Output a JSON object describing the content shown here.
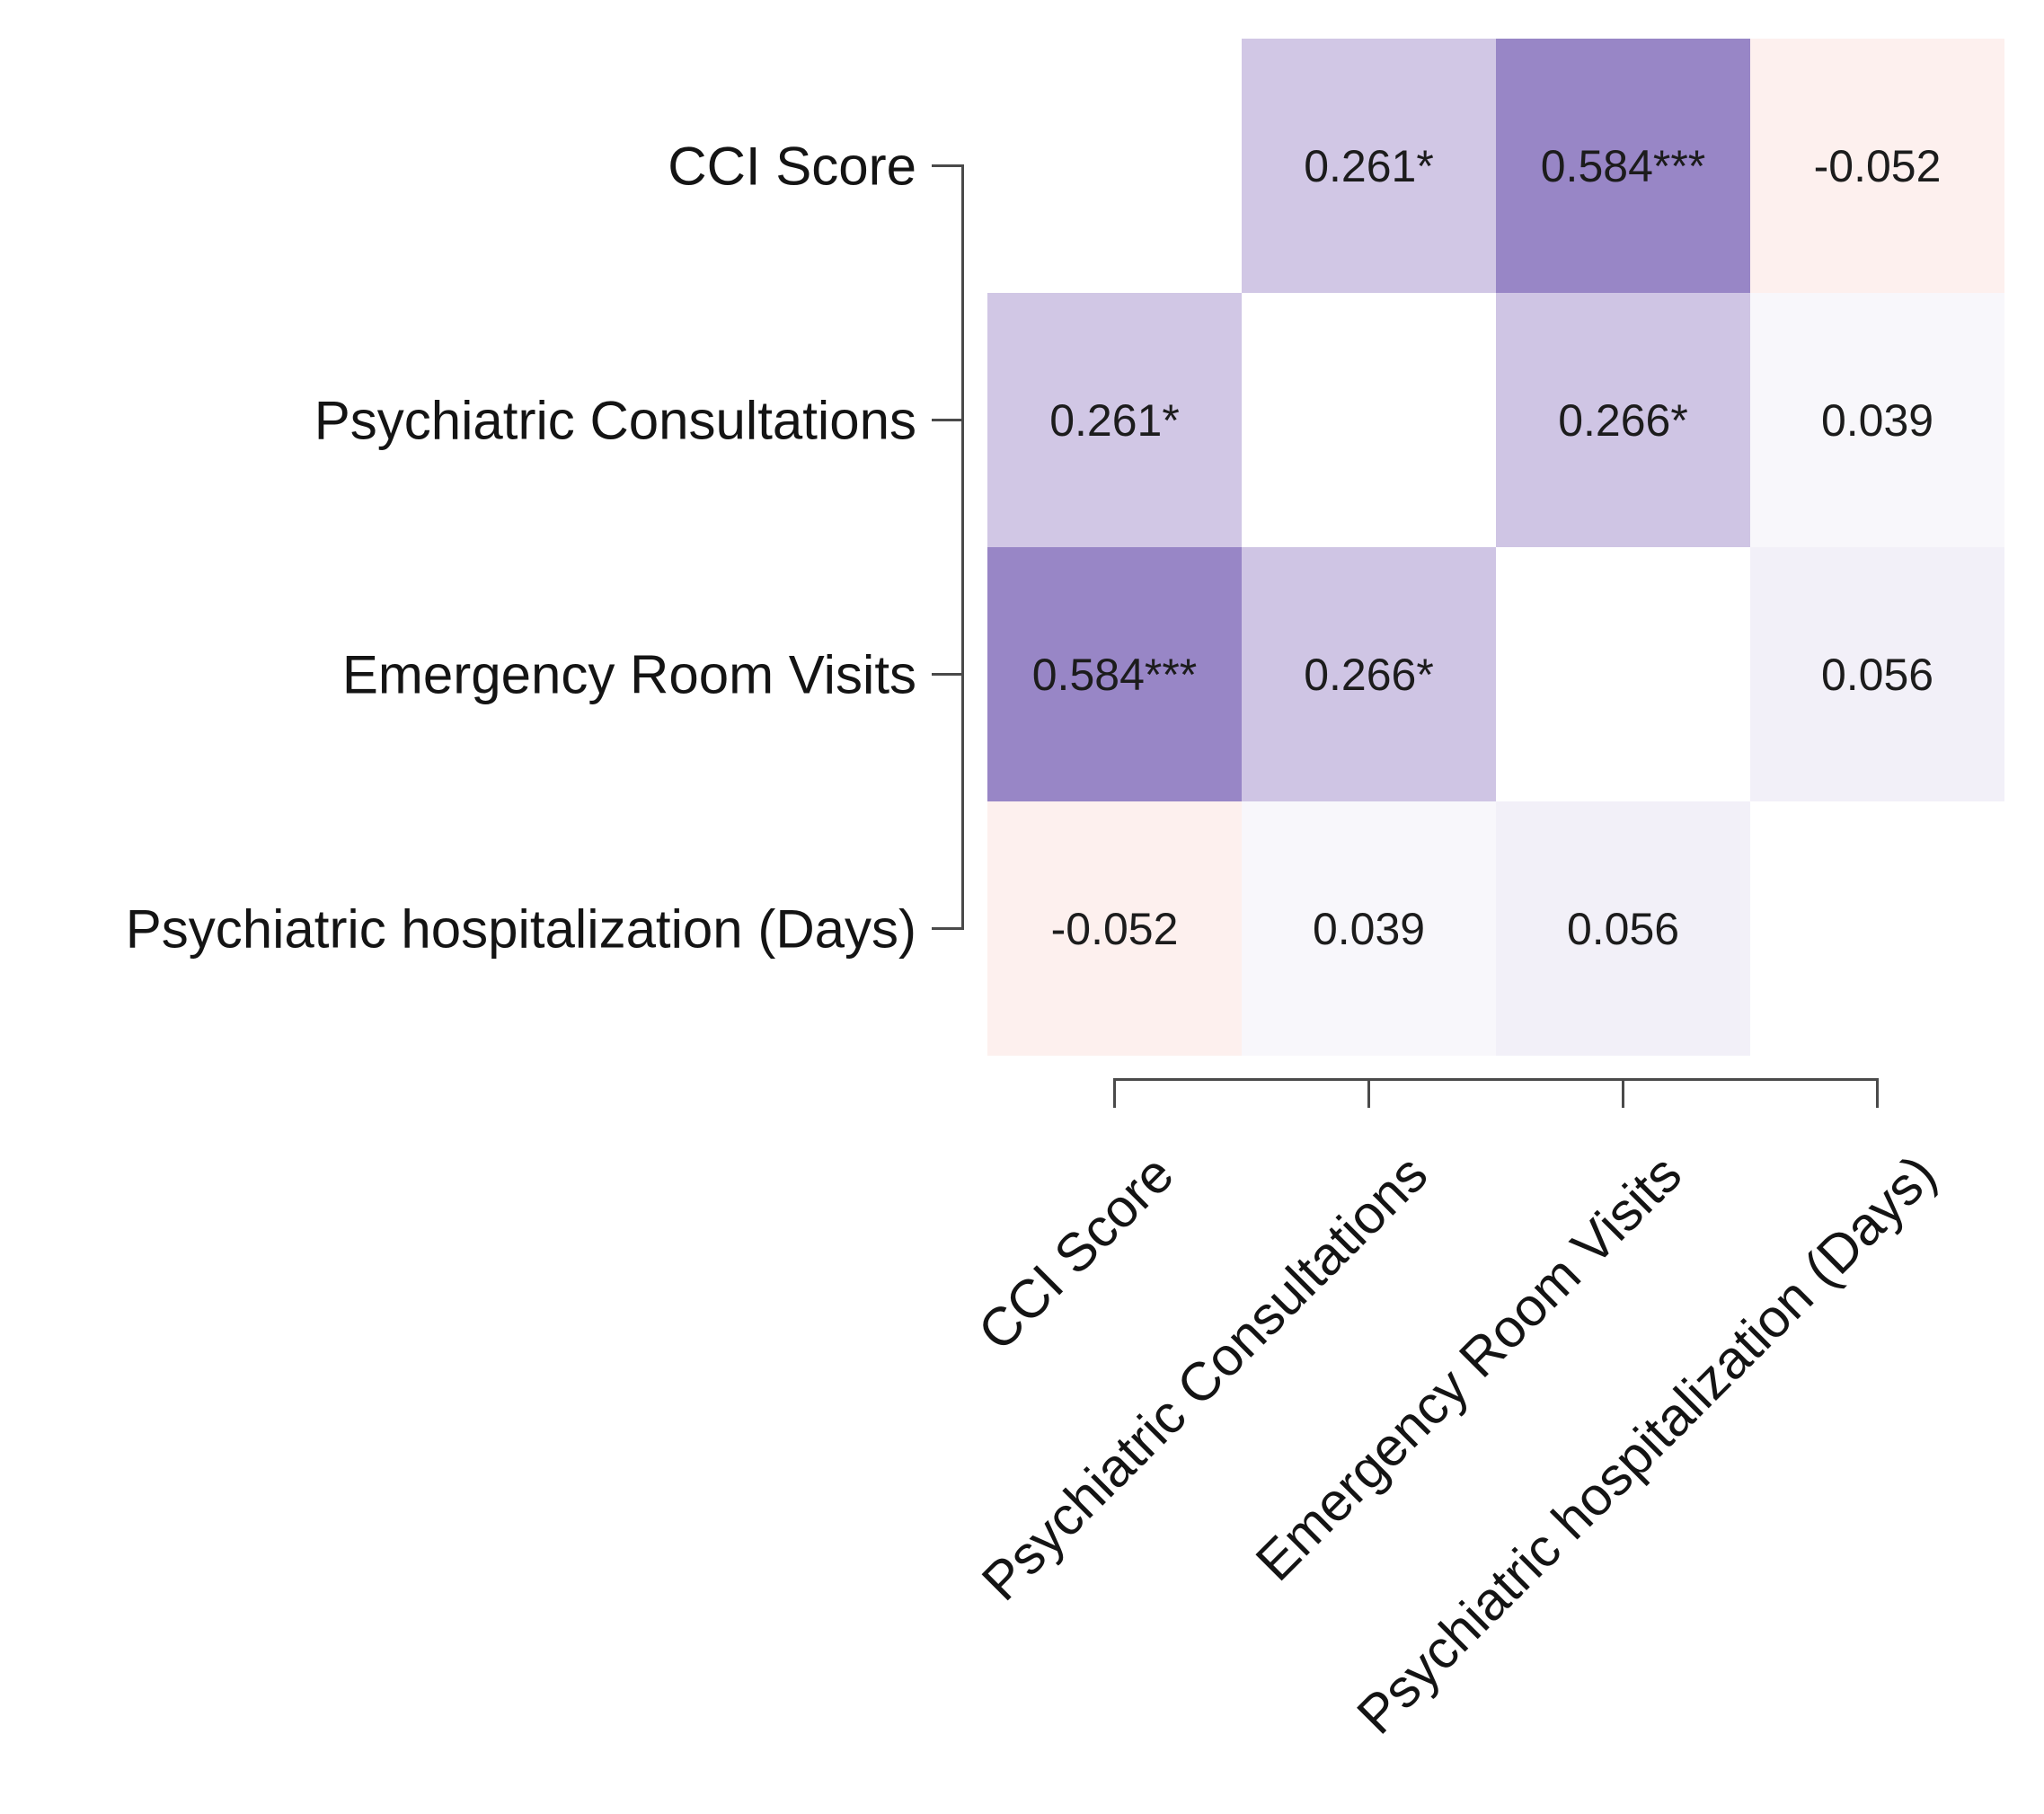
{
  "figure": {
    "background": "#ffffff",
    "text_color": "#141414",
    "axis_line_color": "#4a4a4a"
  },
  "chart_data": {
    "type": "heatmap",
    "subtype": "correlation-matrix",
    "title": "",
    "legend": "none",
    "grid": "off",
    "variables": [
      "CCI Score",
      "Psychiatric Consultations",
      "Emergency Room Visits",
      "Psychiatric hospitalization (Days)"
    ],
    "x_tick_labels": [
      "CCI Score",
      "Psychiatric Consultations",
      "Emergency Room Visits",
      "Psychiatric hospitalization (Days)"
    ],
    "y_tick_labels": [
      "CCI Score",
      "Psychiatric Consultations",
      "Emergency Room Visits",
      "Psychiatric hospitalization (Days)"
    ],
    "matrix": [
      [
        null,
        0.261,
        0.584,
        -0.052
      ],
      [
        0.261,
        null,
        0.266,
        0.039
      ],
      [
        0.584,
        0.266,
        null,
        0.056
      ],
      [
        -0.052,
        0.039,
        0.056,
        null
      ]
    ],
    "cell_labels": [
      [
        "",
        "0.261*",
        "0.584***",
        "-0.052"
      ],
      [
        "0.261*",
        "",
        "0.266*",
        "0.039"
      ],
      [
        "0.584***",
        "0.266*",
        "",
        "0.056"
      ],
      [
        "-0.052",
        "0.039",
        "0.056",
        ""
      ]
    ],
    "cell_colors": [
      [
        "#ffffff",
        "#d1c7e5",
        "#9886c6",
        "#fdf0ee"
      ],
      [
        "#d1c7e5",
        "#ffffff",
        "#cfc5e4",
        "#f8f7fb"
      ],
      [
        "#9886c6",
        "#cfc5e4",
        "#ffffff",
        "#f2f0f8"
      ],
      [
        "#fdf0ee",
        "#f8f7fb",
        "#f2f0f8",
        "#ffffff"
      ]
    ],
    "color_scale": {
      "positive_strong": "#9886c6",
      "positive_light": "#d1c7e5",
      "near_zero_positive": "#f5f3fa",
      "negative_light": "#fdf0ee",
      "diagonal": "#ffffff"
    }
  }
}
